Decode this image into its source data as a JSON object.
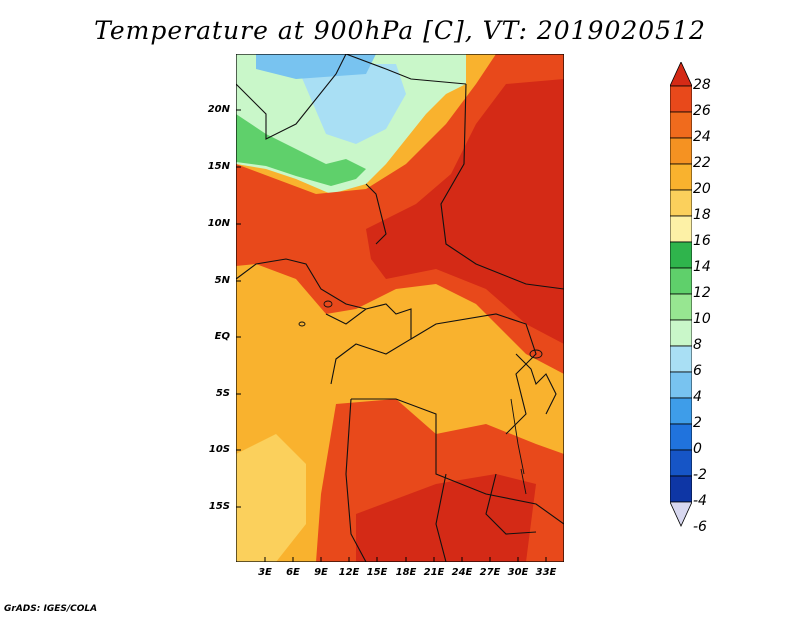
{
  "title": "Temperature at 900hPa [C], VT: 2019020512",
  "credit": "GrADS: IGES/COLA",
  "lat_labels": [
    "20N",
    "15N",
    "10N",
    "5N",
    "EQ",
    "5S",
    "10S",
    "15S"
  ],
  "lon_labels": [
    "3E",
    "6E",
    "9E",
    "12E",
    "15E",
    "18E",
    "21E",
    "24E",
    "27E",
    "30E",
    "33E"
  ],
  "colorbar": {
    "labels": [
      "28",
      "26",
      "24",
      "22",
      "20",
      "18",
      "16",
      "14",
      "12",
      "10",
      "8",
      "6",
      "4",
      "2",
      "0",
      "-2",
      "-4",
      "-6"
    ],
    "colors": [
      "#d42a16",
      "#e8491b",
      "#f06b1d",
      "#f59222",
      "#f9b22e",
      "#fbd05c",
      "#fdf1a6",
      "#2fb44c",
      "#5fd06b",
      "#97e691",
      "#c9f7c9",
      "#a9dff4",
      "#78c3f0",
      "#3e9de9",
      "#2073dd",
      "#1655c6",
      "#0e36a5",
      "#0b1e78"
    ]
  }
}
